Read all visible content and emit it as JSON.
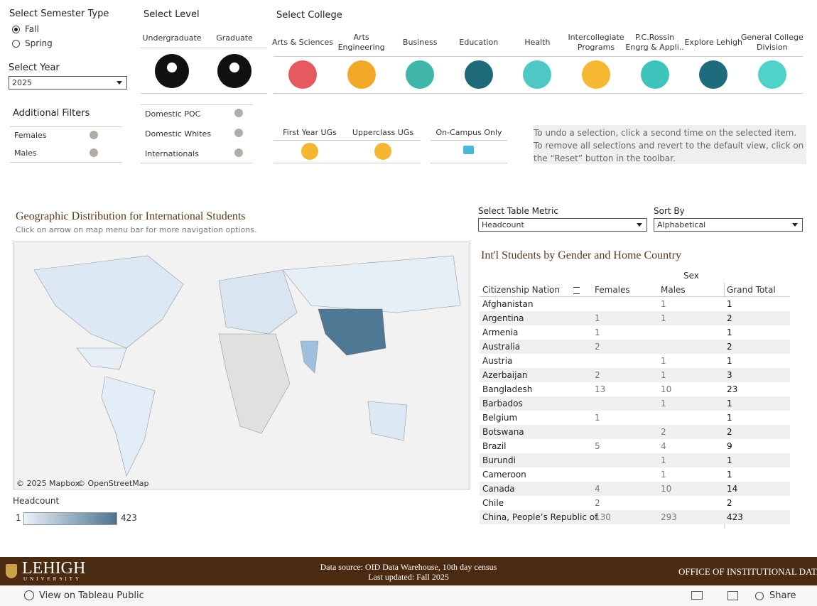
{
  "semester": {
    "title": "Select Semester Type",
    "options": [
      "Fall",
      "Spring"
    ]
  },
  "year": {
    "title": "Select Year",
    "value": "2025"
  },
  "level": {
    "title": "Select Level",
    "options": [
      "Undergraduate",
      "Graduate"
    ]
  },
  "college": {
    "title": "Select College",
    "options": [
      "Arts & Sciences",
      "Arts Engineering",
      "Business",
      "Education",
      "Health",
      "Intercollegiate Programs",
      "P.C.Rossin Engrg & Appli..",
      "Explore Lehigh",
      "General College Division"
    ]
  },
  "additional_filters": {
    "title": "Additional Filters",
    "options": [
      "Females",
      "Males"
    ]
  },
  "population": {
    "options": [
      "Domestic POC",
      "Domestic Whites",
      "Internationals"
    ]
  },
  "student_groups": {
    "options": [
      "First Year UGs",
      "Upperclass UGs"
    ],
    "campus": "On-Campus Only"
  },
  "note": {
    "lines": [
      "To undo a selection, click a second time on the selected item.",
      "To remove all selections and revert to the default view, click on the “Reset” button in the toolbar."
    ]
  },
  "map": {
    "title": "Geographic Distribution for International Students",
    "subtitle": "Click on arrow on map menu bar for more navigation options.",
    "attribution": [
      "© 2025 Mapbox",
      "© OpenStreetMap"
    ],
    "legend_title": "Headcount",
    "legend_min": 1,
    "legend_max": 423
  },
  "table_metric": {
    "label": "Select Table Metric",
    "value": "Headcount"
  },
  "sort_by": {
    "label": "Sort By",
    "value": "Alphabetical"
  },
  "table": {
    "title": "Int'l Students by Gender and Home Country",
    "group_header": "Sex",
    "headers": [
      "Citizenship Nation",
      "Females",
      "Males",
      "Grand Total"
    ],
    "rows": [
      [
        "Afghanistan",
        null,
        1,
        1
      ],
      [
        "Argentina",
        1,
        1,
        2
      ],
      [
        "Armenia",
        1,
        null,
        1
      ],
      [
        "Australia",
        2,
        null,
        2
      ],
      [
        "Austria",
        null,
        1,
        1
      ],
      [
        "Azerbaijan",
        2,
        1,
        3
      ],
      [
        "Bangladesh",
        13,
        10,
        23
      ],
      [
        "Barbados",
        null,
        1,
        1
      ],
      [
        "Belgium",
        1,
        null,
        1
      ],
      [
        "Botswana",
        null,
        2,
        2
      ],
      [
        "Brazil",
        5,
        4,
        9
      ],
      [
        "Burundi",
        null,
        1,
        1
      ],
      [
        "Cameroon",
        null,
        1,
        1
      ],
      [
        "Canada",
        4,
        10,
        14
      ],
      [
        "Chile",
        2,
        null,
        2
      ],
      [
        "China, People’s Republic of",
        130,
        293,
        423
      ]
    ]
  },
  "footer": {
    "logo": "LEHIGH",
    "logo_sub": "UNIVERSITY",
    "source": "Data source: OID Data Warehouse, 10th day census",
    "updated": "Last updated: Fall 2025",
    "office": "OFFICE OF INSTITUTIONAL DATA"
  },
  "toolbar": {
    "view": "View on Tableau Public",
    "share": "Share"
  }
}
